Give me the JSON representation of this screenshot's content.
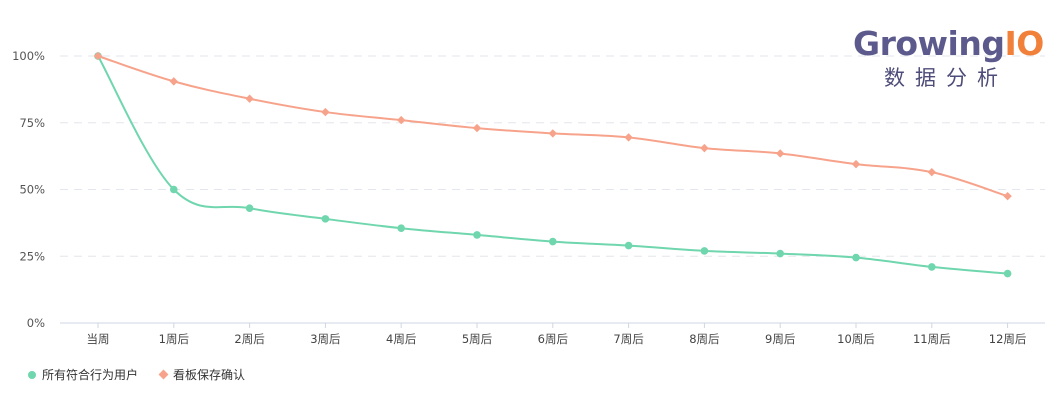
{
  "logo": {
    "brand_main": "Growing",
    "brand_io": "IO",
    "subtitle": "数据分析"
  },
  "chart_data": {
    "type": "line",
    "categories": [
      "当周",
      "1周后",
      "2周后",
      "3周后",
      "4周后",
      "5周后",
      "6周后",
      "7周后",
      "8周后",
      "9周后",
      "10周后",
      "11周后",
      "12周后"
    ],
    "y_ticks": [
      "0%",
      "25%",
      "50%",
      "75%",
      "100%"
    ],
    "ylim": [
      0,
      100
    ],
    "grid": true,
    "legend_position": "bottom-left",
    "series": [
      {
        "name": "所有符合行为用户",
        "color": "#6fd6ae",
        "marker": "circle",
        "values": [
          100,
          50,
          43,
          39,
          35.5,
          33,
          30.5,
          29,
          27,
          26,
          24.5,
          21,
          18.5
        ]
      },
      {
        "name": "看板保存确认",
        "color": "#f7a38b",
        "marker": "diamond",
        "values": [
          100,
          90.5,
          84,
          79,
          76,
          73,
          71,
          69.5,
          65.5,
          63.5,
          59.5,
          56.5,
          47.5
        ]
      }
    ]
  }
}
